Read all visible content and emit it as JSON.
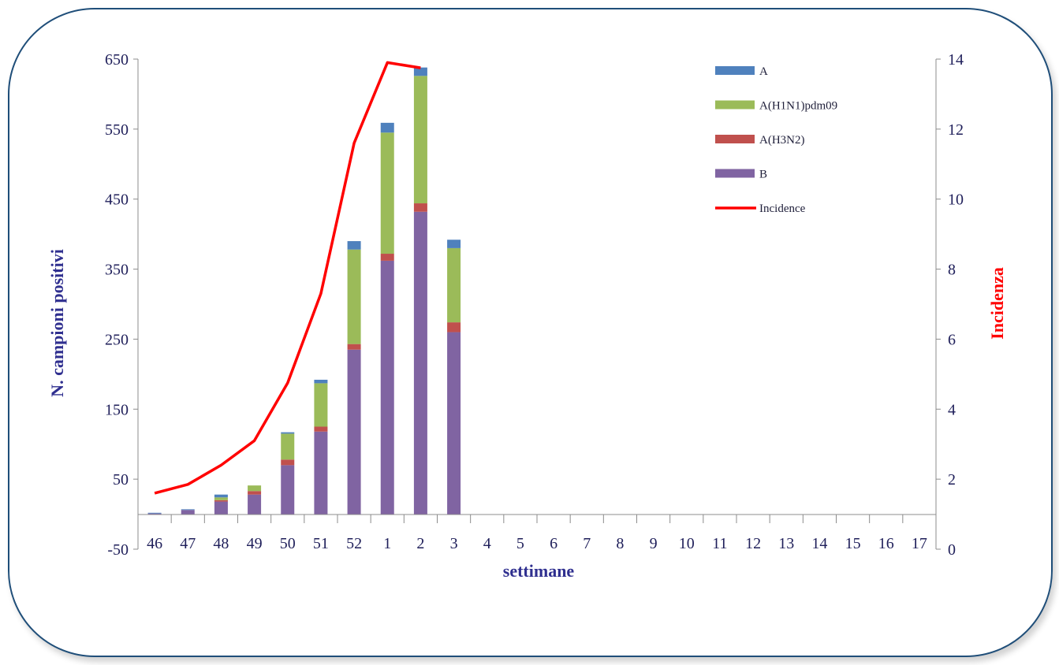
{
  "chart_data": {
    "type": "bar",
    "stacked": true,
    "xlabel": "settimane",
    "ylabel": "N. campioni positivi",
    "y2label": "Incidenza",
    "categories": [
      "46",
      "47",
      "48",
      "49",
      "50",
      "51",
      "52",
      "1",
      "2",
      "3",
      "4",
      "5",
      "6",
      "7",
      "8",
      "9",
      "10",
      "11",
      "12",
      "13",
      "14",
      "15",
      "16",
      "17"
    ],
    "yticks": [
      -50,
      50,
      150,
      250,
      350,
      450,
      550,
      650
    ],
    "y2ticks": [
      0,
      2,
      4,
      6,
      8,
      10,
      12,
      14
    ],
    "ylim": [
      -50,
      650
    ],
    "y2lim": [
      0,
      14
    ],
    "legend_position": "top-right",
    "series": [
      {
        "name": "B",
        "color": "#8064a2",
        "values": [
          1,
          6,
          18,
          28,
          70,
          118,
          235,
          362,
          432,
          260,
          0,
          0,
          0,
          0,
          0,
          0,
          0,
          0,
          0,
          0,
          0,
          0,
          0,
          0
        ]
      },
      {
        "name": "A(H3N2)",
        "color": "#c0504d",
        "values": [
          0,
          0,
          2,
          5,
          8,
          7,
          8,
          10,
          12,
          14,
          0,
          0,
          0,
          0,
          0,
          0,
          0,
          0,
          0,
          0,
          0,
          0,
          0,
          0
        ]
      },
      {
        "name": "A(H1N1)pdm09",
        "color": "#9bbb59",
        "values": [
          0,
          0,
          4,
          8,
          37,
          62,
          135,
          173,
          182,
          106,
          0,
          0,
          0,
          0,
          0,
          0,
          0,
          0,
          0,
          0,
          0,
          0,
          0,
          0
        ]
      },
      {
        "name": "A",
        "color": "#4f81bd",
        "values": [
          1,
          1,
          4,
          0,
          2,
          5,
          12,
          14,
          12,
          12,
          0,
          0,
          0,
          0,
          0,
          0,
          0,
          0,
          0,
          0,
          0,
          0,
          0,
          0
        ]
      }
    ],
    "line_series": {
      "name": "Incidence",
      "color": "#ff0000",
      "axis": "y2",
      "values": [
        1.6,
        1.85,
        2.4,
        3.1,
        4.75,
        7.3,
        11.6,
        13.9,
        13.75,
        null,
        null,
        null,
        null,
        null,
        null,
        null,
        null,
        null,
        null,
        null,
        null,
        null,
        null,
        null
      ]
    },
    "legend_order": [
      "A",
      "A(H1N1)pdm09",
      "A(H3N2)",
      "B",
      "Incidence"
    ]
  }
}
